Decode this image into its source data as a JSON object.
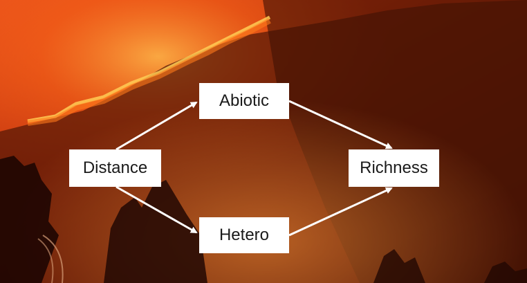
{
  "diagram": {
    "nodes": {
      "distance": "Distance",
      "abiotic": "Abiotic",
      "hetero": "Hetero",
      "richness": "Richness"
    },
    "edges": [
      {
        "from": "distance",
        "to": "abiotic"
      },
      {
        "from": "distance",
        "to": "hetero"
      },
      {
        "from": "abiotic",
        "to": "richness"
      },
      {
        "from": "hetero",
        "to": "richness"
      }
    ],
    "colors": {
      "arrow": "#ffffff",
      "box": "#ffffff",
      "fire": "#ff6a1a",
      "sky": "#c0330d"
    }
  }
}
